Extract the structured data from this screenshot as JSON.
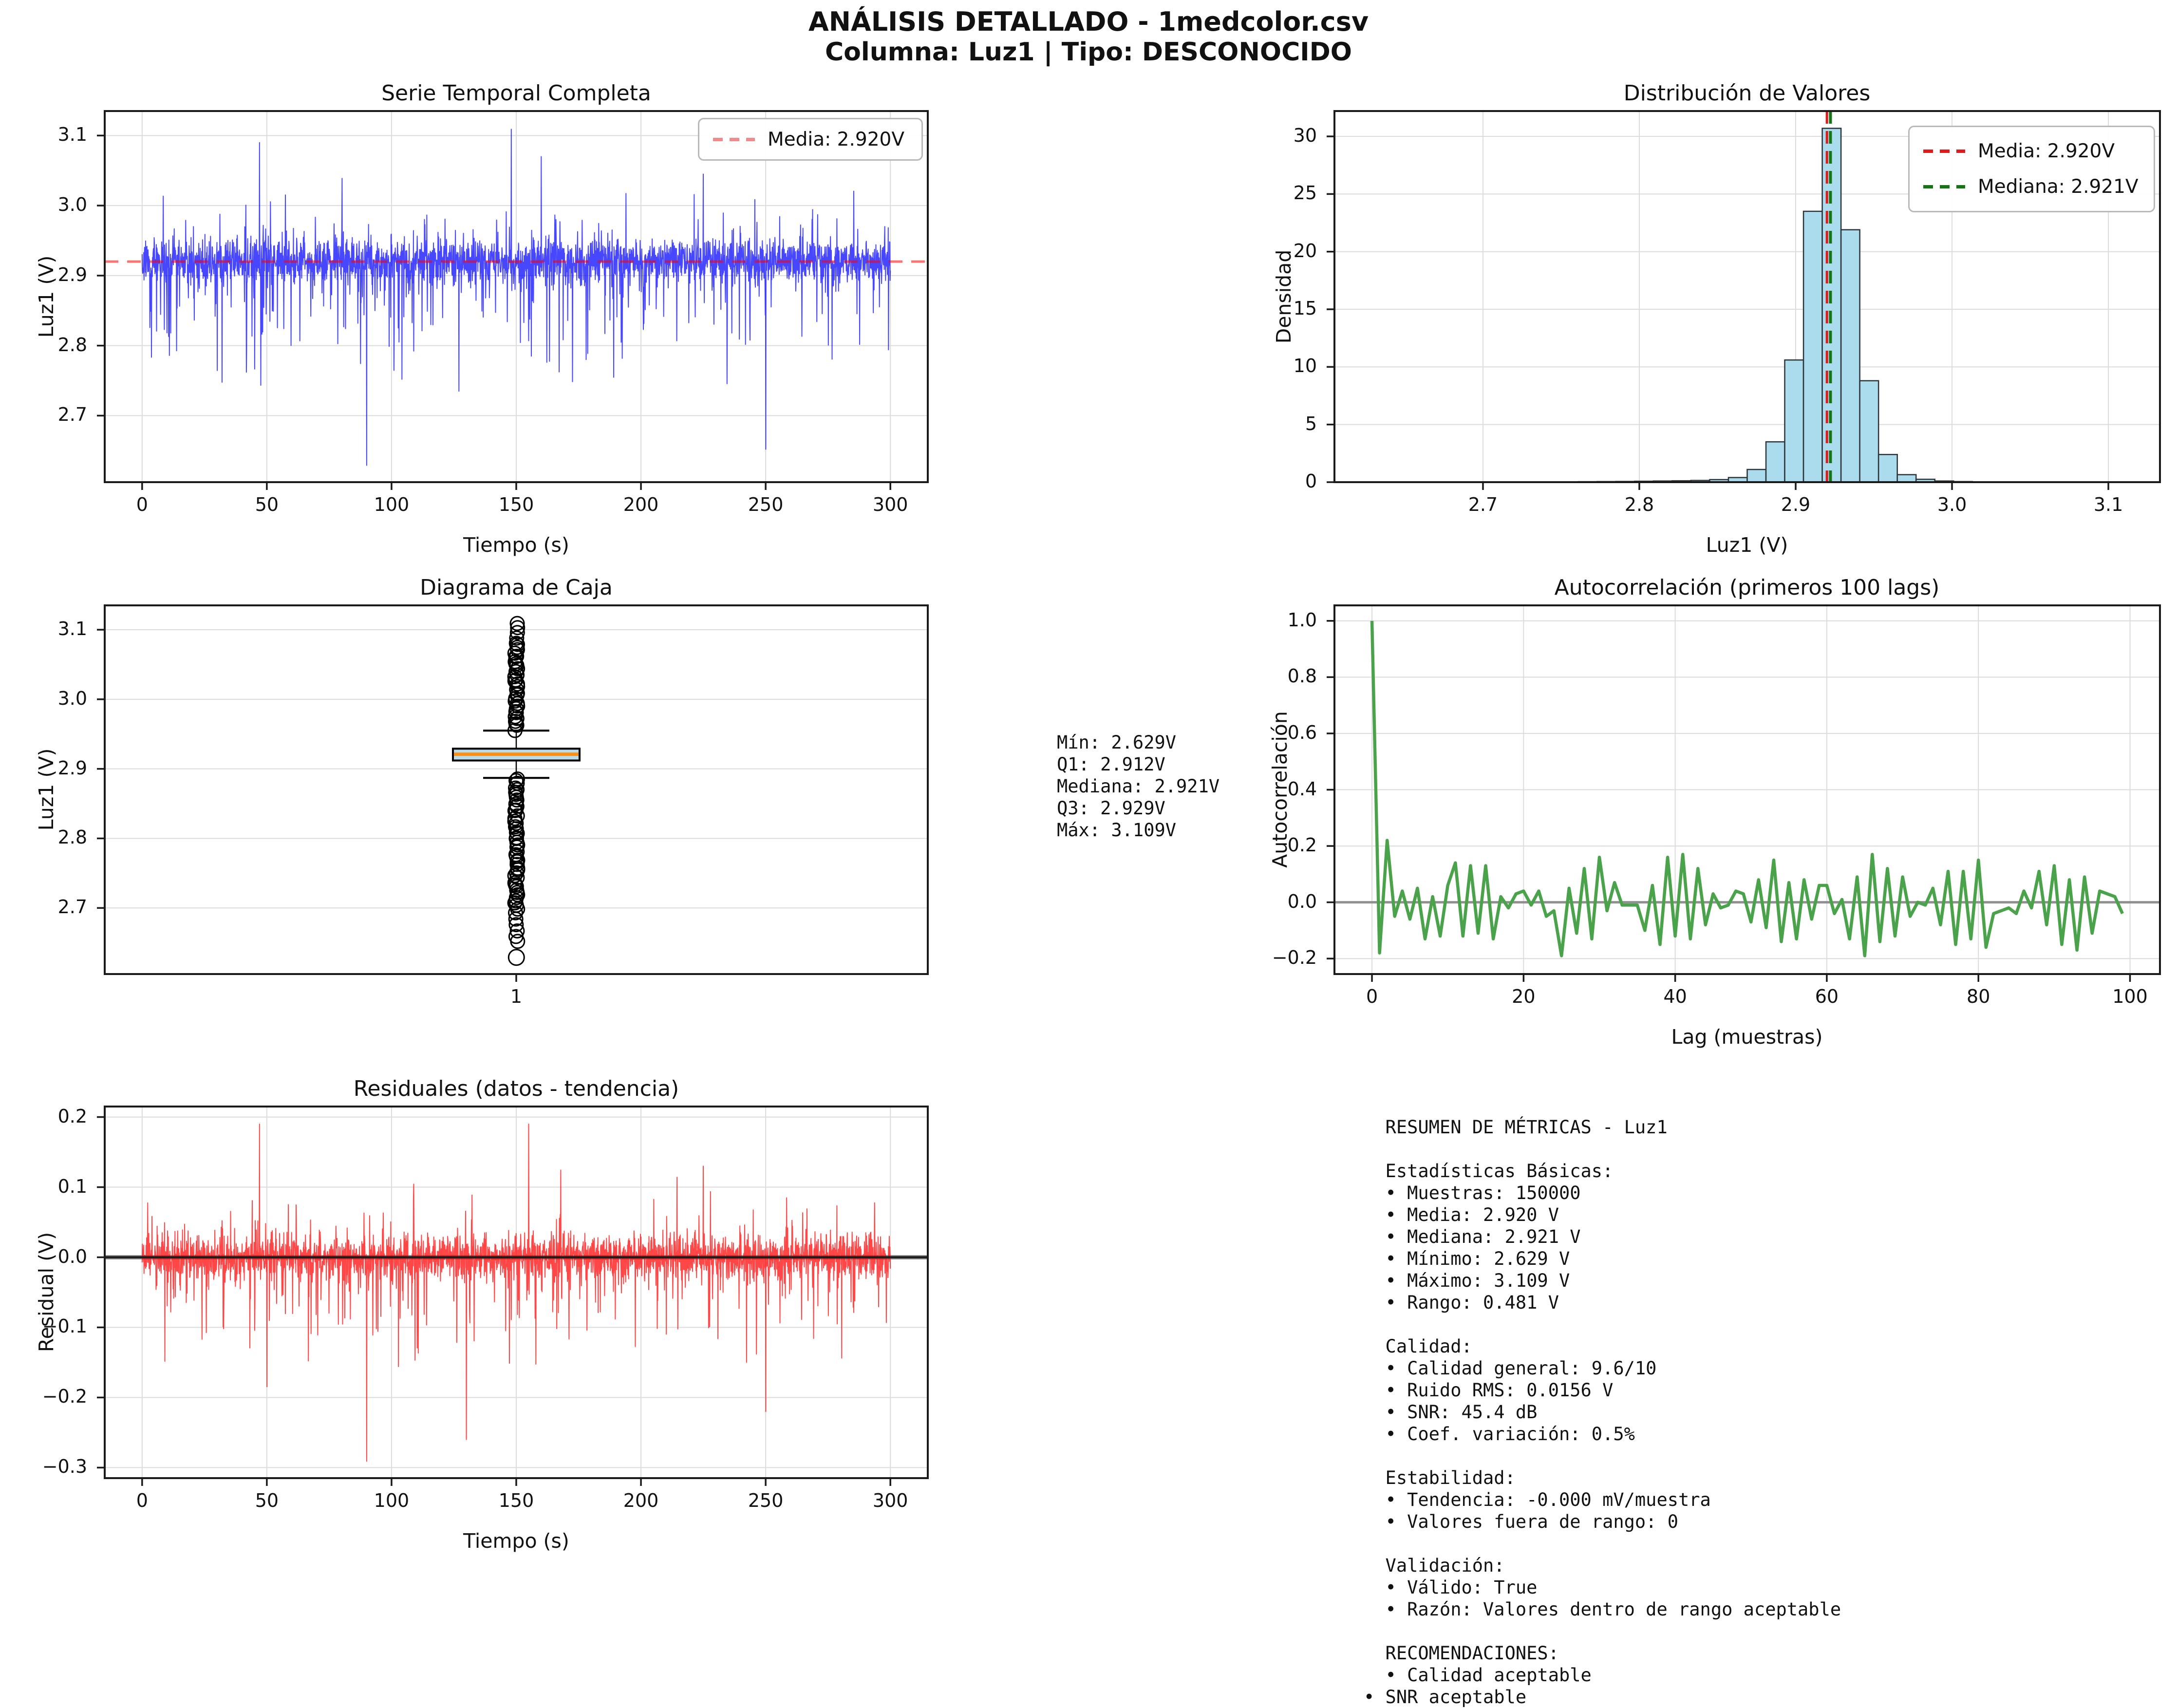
{
  "suptitle_line1": "ANÁLISIS DETALLADO - 1medcolor.csv",
  "suptitle_line2": "Columna: Luz1 | Tipo: DESCONOCIDO",
  "colors": {
    "series_blue": "rgba(0,0,255,0.72)",
    "mean_light_red": "rgba(255,0,0,0.55)",
    "legend_light_red": "#f28a8a",
    "hist_fill": "#aadcee",
    "hist_edge": "#2e3338",
    "hist_mean_red": "#e01b1b",
    "hist_median_green": "#157515",
    "box_fill": "#b8dcea",
    "box_median_orange": "#ff9015",
    "acf_green": "#4aa34a",
    "resid_red": "rgba(255,0,0,0.72)",
    "grid": "#dcdcdc",
    "zero_gray": "#909090",
    "zero_black": "#1c1c1c",
    "spine": "#1a1a1a"
  },
  "chart_data": [
    {
      "id": "serie-temporal",
      "type": "line",
      "title": "Serie Temporal Completa",
      "xlabel": "Tiempo (s)",
      "ylabel": "Luz1 (V)",
      "xlim": [
        -15,
        315
      ],
      "ylim": [
        2.605,
        3.135
      ],
      "xticks": [
        0,
        50,
        100,
        150,
        200,
        250,
        300
      ],
      "xtick_labels": [
        "0",
        "50",
        "100",
        "150",
        "200",
        "250",
        "300"
      ],
      "yticks": [
        2.7,
        2.8,
        2.9,
        3.0,
        3.1
      ],
      "ytick_labels": [
        "2.7",
        "2.8",
        "2.9",
        "3.0",
        "3.1"
      ],
      "grid": "both",
      "legend": [
        {
          "label": "Media: 2.920V"
        }
      ],
      "mean_line": 2.92,
      "signal": {
        "description": "150000-sample noisy voltage trace, rendered as seeded synthetic equivalent",
        "mean": 2.92,
        "rms": 0.0156,
        "min": 2.629,
        "max": 3.109,
        "dense_band": [
          2.86,
          2.98
        ],
        "n_points": 2800,
        "seed": 1337,
        "forced_peaks": [
          {
            "t": 47,
            "v": 3.09
          },
          {
            "t": 90,
            "v": 2.629
          },
          {
            "t": 148,
            "v": 3.109
          },
          {
            "t": 160,
            "v": 3.07
          },
          {
            "t": 225,
            "v": 3.045
          },
          {
            "t": 250,
            "v": 2.652
          }
        ]
      }
    },
    {
      "id": "distribucion",
      "type": "bar",
      "title": "Distribución de Valores",
      "xlabel": "Luz1 (V)",
      "ylabel": "Densidad",
      "xlim": [
        2.605,
        3.133
      ],
      "ylim": [
        0,
        32.2
      ],
      "xticks": [
        2.7,
        2.8,
        2.9,
        3.0,
        3.1
      ],
      "xtick_labels": [
        "2.7",
        "2.8",
        "2.9",
        "3.0",
        "3.1"
      ],
      "yticks": [
        0,
        5,
        10,
        15,
        20,
        25,
        30
      ],
      "ytick_labels": [
        "0",
        "5",
        "10",
        "15",
        "20",
        "25",
        "30"
      ],
      "grid": "both",
      "bin_start": 2.629,
      "bin_width": 0.012,
      "densities": [
        0.02,
        0,
        0,
        0,
        0,
        0.01,
        0.01,
        0.02,
        0.02,
        0.03,
        0.03,
        0.04,
        0.05,
        0.06,
        0.08,
        0.1,
        0.12,
        0.15,
        0.22,
        0.4,
        1.1,
        3.5,
        10.6,
        23.5,
        30.7,
        21.9,
        8.8,
        2.4,
        0.65,
        0.25,
        0.1,
        0.05,
        0.03,
        0.02,
        0.02,
        0.01,
        0.01,
        0.01,
        0.01,
        0.02
      ],
      "mean_line": 2.92,
      "median_line": 2.921,
      "legend": [
        {
          "label": "Media: 2.920V"
        },
        {
          "label": "Mediana: 2.921V"
        }
      ]
    },
    {
      "id": "diagrama-caja",
      "type": "box",
      "title": "Diagrama de Caja",
      "ylabel": "Luz1 (V)",
      "xlim": [
        0.5,
        1.5
      ],
      "ylim": [
        2.605,
        3.135
      ],
      "xticks": [
        1
      ],
      "xtick_labels": [
        "1"
      ],
      "yticks": [
        2.7,
        2.8,
        2.9,
        3.0,
        3.1
      ],
      "ytick_labels": [
        "2.7",
        "2.8",
        "2.9",
        "3.0",
        "3.1"
      ],
      "grid": "y",
      "stats": {
        "min": 2.629,
        "q1": 2.912,
        "median": 2.921,
        "q3": 2.929,
        "max": 3.109,
        "whisker_low": 2.887,
        "whisker_high": 2.955
      },
      "outliers": {
        "upper_dense_range": [
          2.957,
          3.082
        ],
        "upper_dense_count": 34,
        "upper_sparse": [
          3.088,
          3.096,
          3.103,
          3.109
        ],
        "lower_dense_range": [
          2.698,
          2.886
        ],
        "lower_dense_count": 48,
        "lower_sparse": [
          2.693,
          2.684,
          2.676,
          2.667,
          2.659,
          2.652
        ],
        "isolated_min": 2.629
      }
    },
    {
      "id": "autocorrelacion",
      "type": "line",
      "title": "Autocorrelación (primeros 100 lags)",
      "xlabel": "Lag (muestras)",
      "ylabel": "Autocorrelación",
      "xlim": [
        -4.95,
        103.95
      ],
      "ylim": [
        -0.255,
        1.055
      ],
      "xticks": [
        0,
        20,
        40,
        60,
        80,
        100
      ],
      "xtick_labels": [
        "0",
        "20",
        "40",
        "60",
        "80",
        "100"
      ],
      "yticks": [
        -0.2,
        0.0,
        0.2,
        0.4,
        0.6,
        0.8,
        1.0
      ],
      "ytick_labels": [
        "−0.2",
        "0.0",
        "0.2",
        "0.4",
        "0.6",
        "0.8",
        "1.0"
      ],
      "grid": "both",
      "zero_line": 0,
      "values": [
        1.0,
        -0.18,
        0.22,
        -0.05,
        0.04,
        -0.06,
        0.05,
        -0.13,
        0.02,
        -0.12,
        0.06,
        0.14,
        -0.12,
        0.13,
        -0.11,
        0.13,
        -0.13,
        0.02,
        -0.02,
        0.03,
        0.04,
        -0.01,
        0.04,
        -0.05,
        -0.03,
        -0.19,
        0.05,
        -0.11,
        0.12,
        -0.13,
        0.16,
        -0.03,
        0.07,
        -0.01,
        -0.01,
        -0.01,
        -0.1,
        0.06,
        -0.15,
        0.16,
        -0.12,
        0.17,
        -0.13,
        0.12,
        -0.08,
        0.03,
        -0.02,
        -0.01,
        0.04,
        0.03,
        -0.07,
        0.08,
        -0.09,
        0.15,
        -0.14,
        0.07,
        -0.13,
        0.08,
        -0.06,
        0.06,
        0.06,
        -0.04,
        0.01,
        -0.13,
        0.09,
        -0.19,
        0.17,
        -0.14,
        0.12,
        -0.12,
        0.09,
        -0.05,
        0.0,
        -0.01,
        0.05,
        -0.08,
        0.11,
        -0.15,
        0.11,
        -0.13,
        0.15,
        -0.16,
        -0.04,
        -0.03,
        -0.02,
        -0.04,
        0.04,
        -0.02,
        0.11,
        -0.08,
        0.13,
        -0.15,
        0.08,
        -0.17,
        0.09,
        -0.11,
        0.04,
        0.03,
        0.02,
        -0.04
      ]
    },
    {
      "id": "residuales",
      "type": "line",
      "title": "Residuales (datos - tendencia)",
      "xlabel": "Tiempo (s)",
      "ylabel": "Residual (V)",
      "xlim": [
        -15,
        315
      ],
      "ylim": [
        -0.315,
        0.215
      ],
      "xticks": [
        0,
        50,
        100,
        150,
        200,
        250,
        300
      ],
      "xtick_labels": [
        "0",
        "50",
        "100",
        "150",
        "200",
        "250",
        "300"
      ],
      "yticks": [
        0.2,
        0.1,
        0.0,
        -0.1,
        -0.2,
        -0.3
      ],
      "ytick_labels": [
        "0.2",
        "0.1",
        "0.0",
        "−0.1",
        "−0.2",
        "−0.3"
      ],
      "grid": "both",
      "zero_line": 0,
      "signal": {
        "description": "residual noise trace (data - trend), rendered as seeded synthetic equivalent",
        "mean": 0.0,
        "rms": 0.0156,
        "min": -0.291,
        "max": 0.19,
        "dense_band": [
          -0.06,
          0.06
        ],
        "n_points": 2800,
        "seed": 9001,
        "forced_peaks": [
          {
            "t": 47,
            "v": 0.19
          },
          {
            "t": 90,
            "v": -0.291
          },
          {
            "t": 130,
            "v": -0.26
          },
          {
            "t": 155,
            "v": 0.19
          },
          {
            "t": 225,
            "v": 0.13
          },
          {
            "t": 250,
            "v": -0.22
          }
        ]
      }
    }
  ],
  "box_annotation": {
    "lines": [
      "Mín: 2.629V",
      "Q1: 2.912V",
      "Mediana: 2.921V",
      "Q3: 2.929V",
      "Máx: 3.109V"
    ]
  },
  "metrics_panel": {
    "lines": [
      "  RESUMEN DE MÉTRICAS - Luz1",
      "",
      "  Estadísticas Básicas:",
      "  • Muestras: 150000",
      "  • Media: 2.920 V",
      "  • Mediana: 2.921 V",
      "  • Mínimo: 2.629 V",
      "  • Máximo: 3.109 V",
      "  • Rango: 0.481 V",
      "",
      "  Calidad:",
      "  • Calidad general: 9.6/10",
      "  • Ruido RMS: 0.0156 V",
      "  • SNR: 45.4 dB",
      "  • Coef. variación: 0.5%",
      "",
      "  Estabilidad:",
      "  • Tendencia: -0.000 mV/muestra",
      "  • Valores fuera de rango: 0",
      "",
      "  Validación:",
      "  • Válido: True",
      "  • Razón: Valores dentro de rango aceptable",
      "",
      "  RECOMENDACIONES:",
      "  • Calidad aceptable",
      "• SNR aceptable"
    ]
  }
}
